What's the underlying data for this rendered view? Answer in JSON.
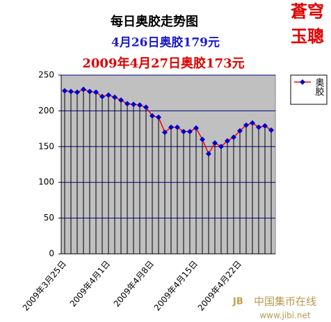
{
  "chart_data": {
    "type": "line",
    "title": "每日奥胶走势图",
    "subtitles": [
      {
        "text": "4月26日奥胶179元",
        "color": "#1a1acc"
      },
      {
        "text": "2009年4月27日奥胶173元",
        "color": "#dd0000"
      }
    ],
    "categories": [
      "2009年3月25日",
      null,
      null,
      null,
      null,
      null,
      null,
      "2009年4月1日",
      null,
      null,
      null,
      null,
      null,
      null,
      "2009年4月8日",
      null,
      null,
      null,
      null,
      null,
      null,
      "2009年4月15日",
      null,
      null,
      null,
      null,
      null,
      null,
      "2009年4月22日",
      null,
      null,
      null,
      null,
      null
    ],
    "series": [
      {
        "name": "奥胶",
        "color": "#ff0000",
        "marker_color": "#0000cc",
        "values": [
          228,
          227,
          226,
          230,
          227,
          226,
          220,
          222,
          219,
          215,
          210,
          209,
          208,
          205,
          193,
          191,
          170,
          177,
          177,
          171,
          171,
          176,
          160,
          140,
          155,
          150,
          158,
          163,
          172,
          180,
          183,
          177,
          179,
          173
        ]
      }
    ],
    "ylim": [
      0,
      250
    ],
    "yticks": [
      0,
      50,
      100,
      150,
      200,
      250
    ],
    "grid": true,
    "plot_background": "#c0c0c0",
    "grid_color": "#000080",
    "drop_lines": true,
    "legend": "right"
  },
  "logo": [
    "蒼穹",
    "玉聰"
  ],
  "watermark": {
    "name": "中国集币在线",
    "url": "www.jibi.net"
  }
}
